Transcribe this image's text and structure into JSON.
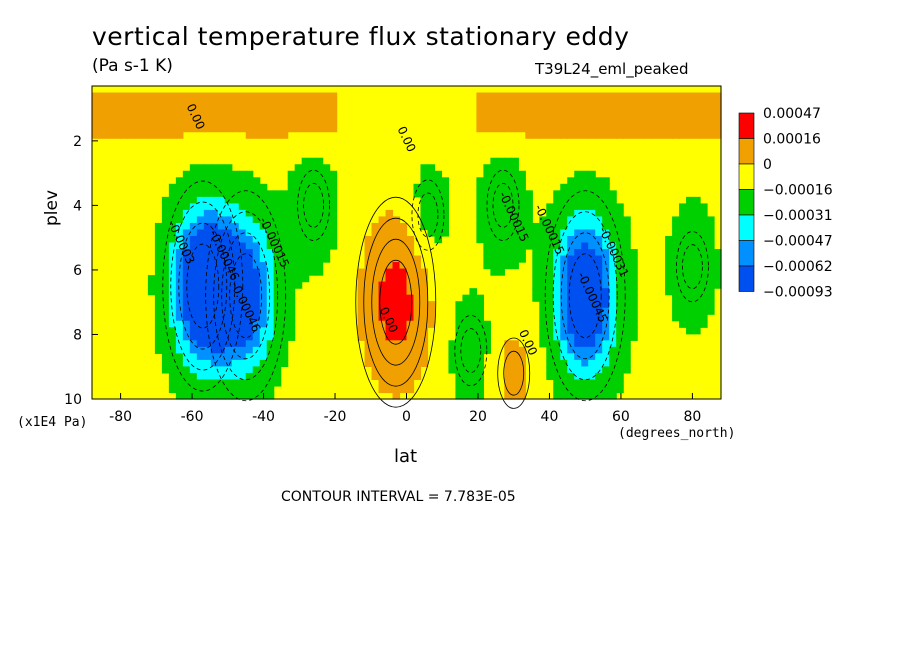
{
  "title": "vertical temperature flux stationary eddy",
  "units": "(Pa s-1 K)",
  "experiment": "T39L24_eml_peaked",
  "contour_interval": "CONTOUR INTERVAL = 7.783E-05",
  "chart_data": {
    "type": "heatmap",
    "xlabel": "lat",
    "xunit": "(degrees_north)",
    "ylabel": "plev",
    "yunit": "(x1E4 Pa)",
    "xlim": [
      -88,
      88
    ],
    "ylim": [
      10,
      0.3
    ],
    "x_ticks": [
      -80,
      -60,
      -40,
      -20,
      0,
      20,
      40,
      60,
      80
    ],
    "y_ticks": [
      2,
      4,
      6,
      8,
      10
    ],
    "legend": {
      "placement": "right",
      "labels": [
        "0.00047",
        "0.00016",
        "0",
        "−0.00016",
        "−0.00031",
        "−0.00047",
        "−0.00062",
        "−0.00093"
      ],
      "colors": [
        "#ff0000",
        "#f0a000",
        "#ffff00",
        "#00d000",
        "#00ffff",
        "#0090ff",
        "#0050f0"
      ]
    },
    "field_features": [
      {
        "kind": "minimum",
        "lat": -57,
        "plev": 6.5,
        "value": -0.00093
      },
      {
        "kind": "minimum",
        "lat": -45,
        "plev": 6.8,
        "value": -0.0007
      },
      {
        "kind": "minimum",
        "lat": 50,
        "plev": 6.8,
        "value": -0.00093
      },
      {
        "kind": "minimum",
        "lat": -26,
        "plev": 4.0,
        "value": -0.0003
      },
      {
        "kind": "minimum",
        "lat": 6,
        "plev": 4.3,
        "value": -0.00022
      },
      {
        "kind": "minimum",
        "lat": 27,
        "plev": 4.0,
        "value": -0.0003
      },
      {
        "kind": "minimum",
        "lat": 80,
        "plev": 5.9,
        "value": -0.0003
      },
      {
        "kind": "minimum",
        "lat": 18,
        "plev": 8.5,
        "value": -0.00022
      },
      {
        "kind": "maximum",
        "lat": -3,
        "plev": 7.0,
        "value": 0.0006
      },
      {
        "kind": "maximum",
        "lat": 30,
        "plev": 9.2,
        "value": 0.00025
      }
    ],
    "contour_labels": [
      {
        "text": "0.00",
        "lat": -60,
        "plev": 1.3
      },
      {
        "text": "0.00",
        "lat": -1,
        "plev": 2.0
      },
      {
        "text": "-0.0003",
        "lat": -64,
        "plev": 5.2
      },
      {
        "text": "-0.00046",
        "lat": -52,
        "plev": 5.6
      },
      {
        "text": "-0.00015",
        "lat": -38,
        "plev": 5.2
      },
      {
        "text": "-0.00046",
        "lat": -46,
        "plev": 7.2
      },
      {
        "text": "0.00",
        "lat": -6,
        "plev": 7.6
      },
      {
        "text": "-0.00015",
        "lat": 29,
        "plev": 4.4
      },
      {
        "text": "0.00",
        "lat": 33,
        "plev": 8.3
      },
      {
        "text": "-0.00015",
        "lat": 39,
        "plev": 4.8
      },
      {
        "text": "-0.00031",
        "lat": 57,
        "plev": 5.5
      },
      {
        "text": "-0.00045",
        "lat": 51,
        "plev": 6.9
      }
    ]
  }
}
